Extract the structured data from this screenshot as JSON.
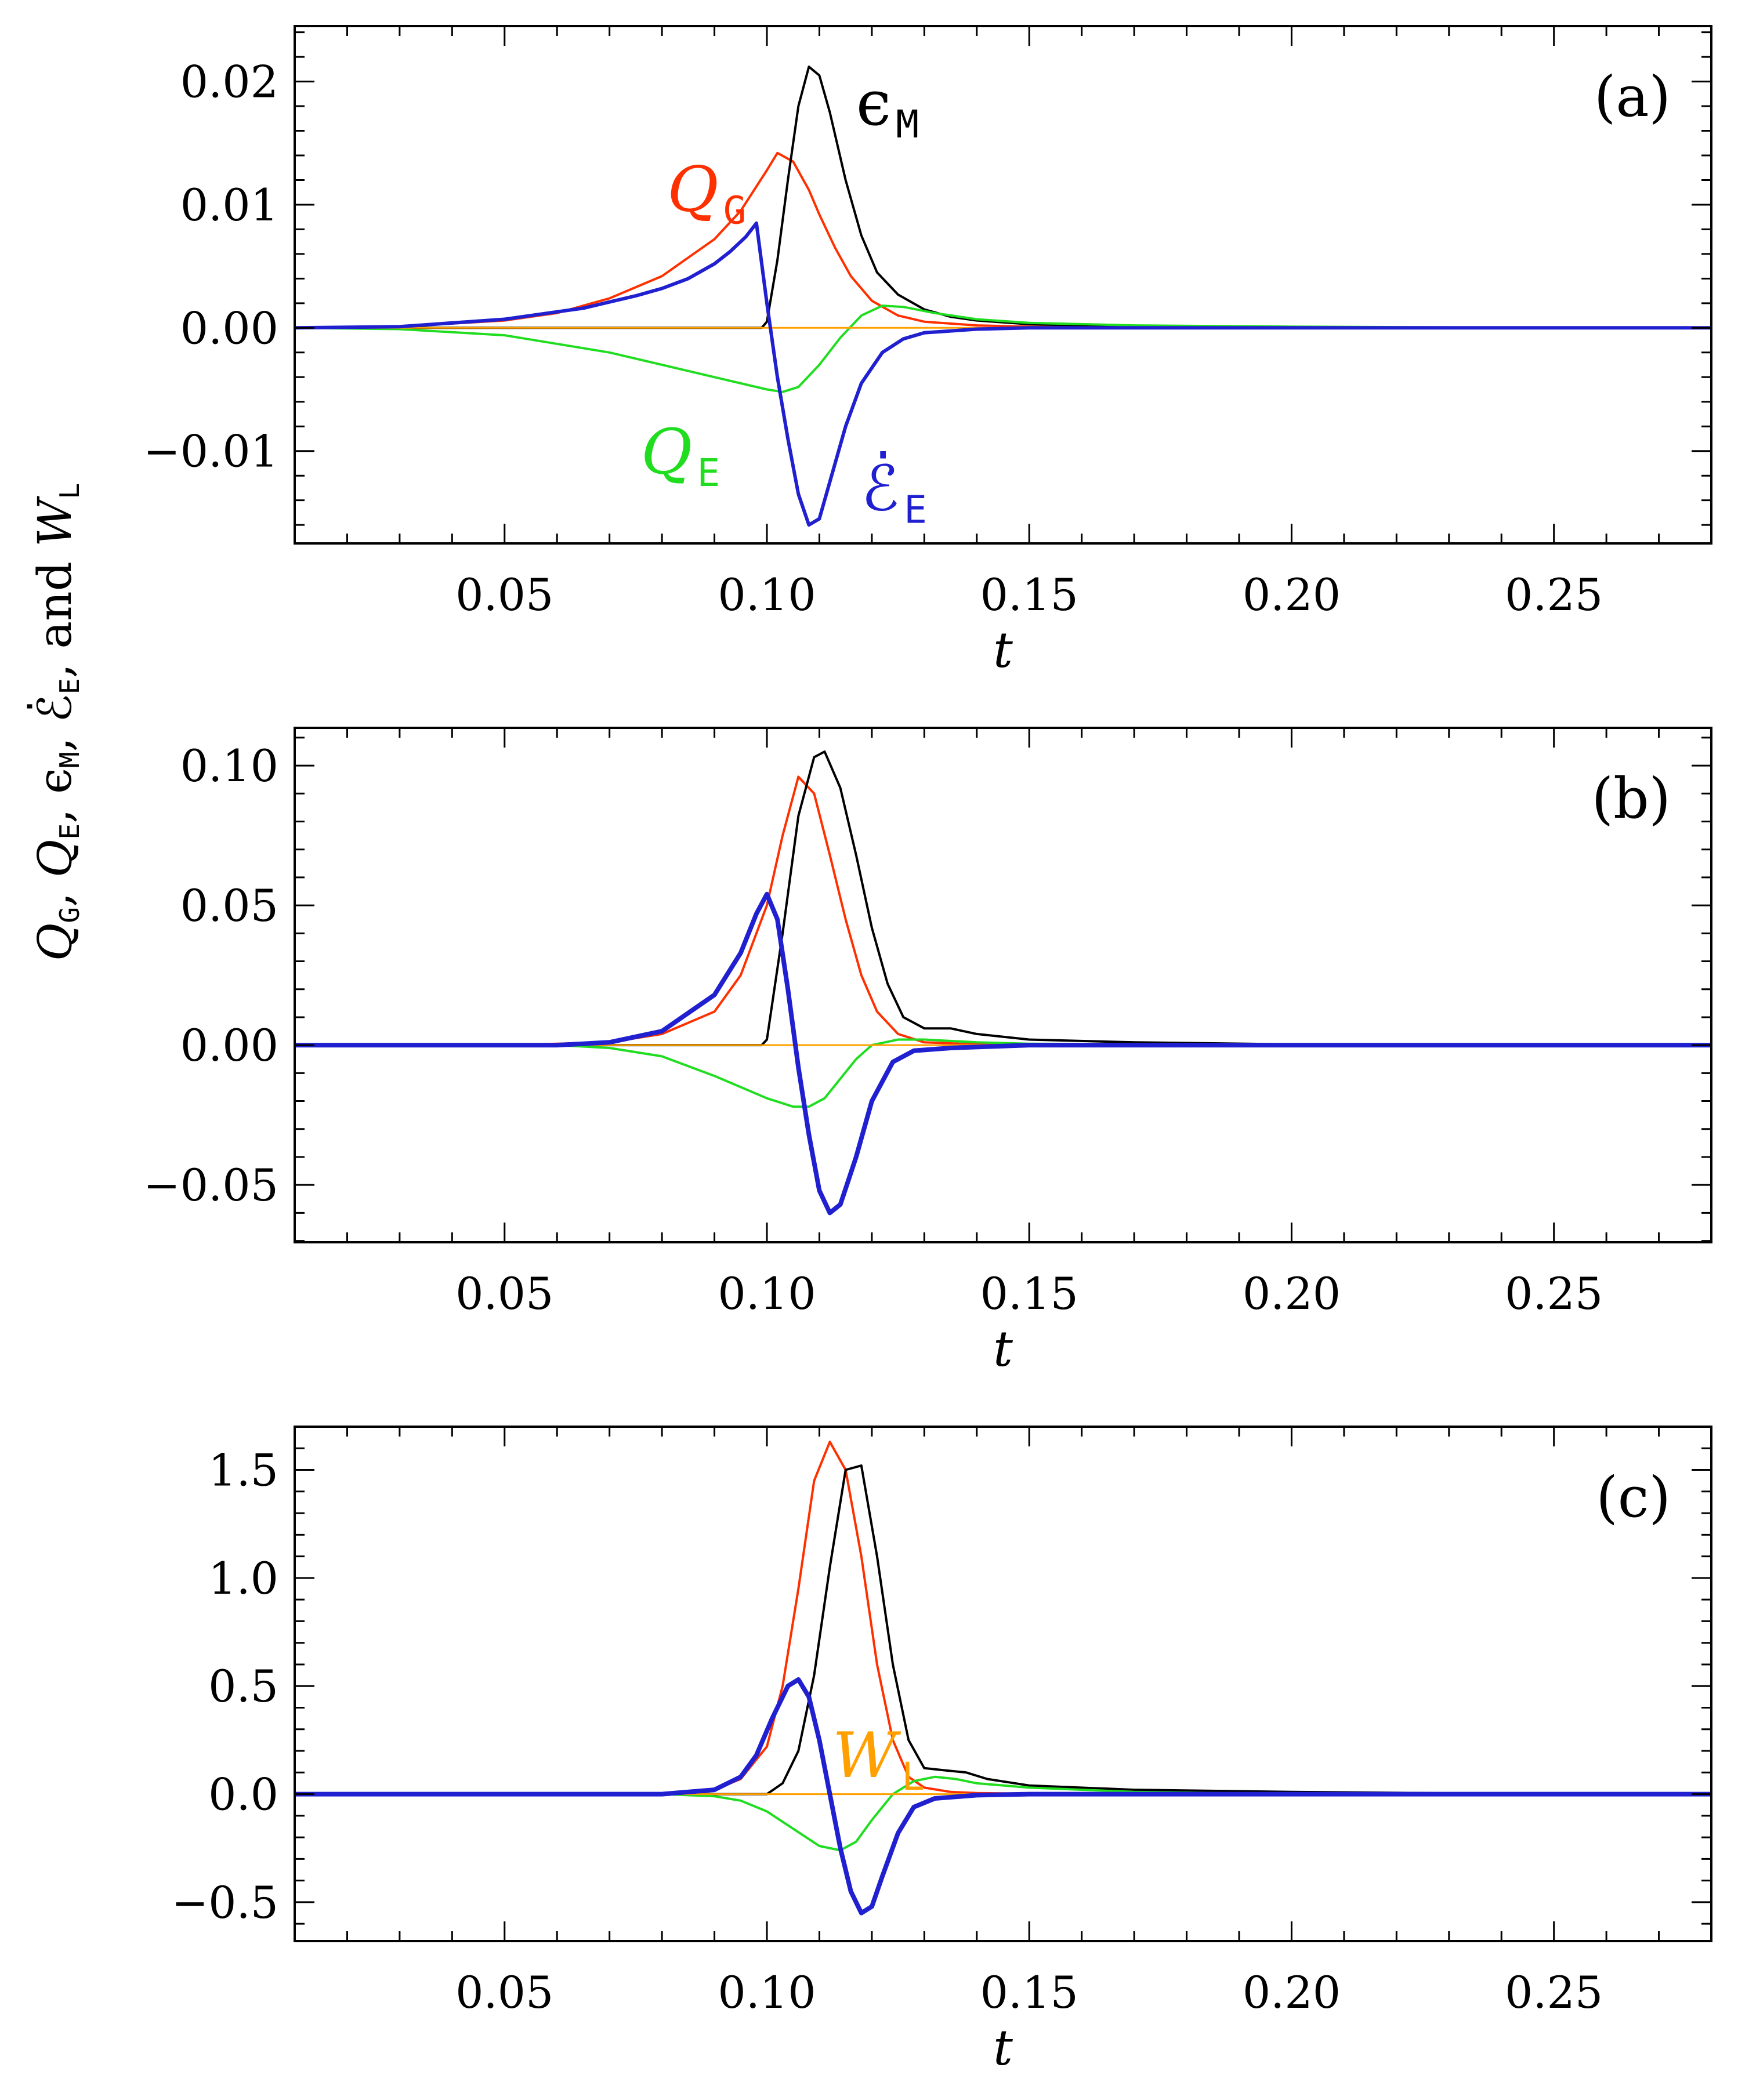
{
  "figure": {
    "ylabel_parts": [
      {
        "text": "Q",
        "style": "italic"
      },
      {
        "text": "G",
        "style": "sub"
      },
      {
        "text": ",  ",
        "style": "normal"
      },
      {
        "text": "Q",
        "style": "italic"
      },
      {
        "text": "E",
        "style": "sub"
      },
      {
        "text": ",  ϵ",
        "style": "normal"
      },
      {
        "text": "M",
        "style": "sub"
      },
      {
        "text": ",  ℰ̇",
        "style": "normal"
      },
      {
        "text": "E",
        "style": "sub"
      },
      {
        "text": ",  and  ",
        "style": "normal"
      },
      {
        "text": "W",
        "style": "italic"
      },
      {
        "text": "L",
        "style": "sub"
      }
    ]
  },
  "colors": {
    "Q_G": "#ff3000",
    "epsilon_M": "#000000",
    "Q_E": "#20dd20",
    "Edot_E": "#2020d0",
    "W_L": "#ffa000"
  },
  "chart_data": [
    {
      "type": "line",
      "panel": "(a)",
      "xlabel": "t",
      "xlim": [
        0.01,
        0.28
      ],
      "ylim": [
        -0.0175,
        0.0245
      ],
      "xticks": [
        0.05,
        0.1,
        0.15,
        0.2,
        0.25
      ],
      "xtick_labels": [
        "0.05",
        "0.10",
        "0.15",
        "0.20",
        "0.25"
      ],
      "yticks": [
        -0.01,
        0.0,
        0.01,
        0.02
      ],
      "ytick_labels": [
        "−0.01",
        "0.00",
        "0.01",
        "0.02"
      ],
      "series": [
        {
          "name": "Q_G",
          "color_key": "Q_G",
          "width": 4,
          "x": [
            0.01,
            0.03,
            0.05,
            0.06,
            0.07,
            0.08,
            0.09,
            0.095,
            0.1,
            0.102,
            0.105,
            0.108,
            0.11,
            0.113,
            0.116,
            0.12,
            0.125,
            0.13,
            0.14,
            0.15,
            0.17,
            0.2,
            0.25,
            0.28
          ],
          "y": [
            0.0,
            0.0001,
            0.0006,
            0.0012,
            0.0024,
            0.0042,
            0.0072,
            0.0095,
            0.0128,
            0.0142,
            0.0135,
            0.0112,
            0.0092,
            0.0065,
            0.0042,
            0.0022,
            0.001,
            0.0005,
            0.0002,
            0.0001,
            0.0,
            0.0,
            0.0,
            0.0
          ]
        },
        {
          "name": "epsilon_M",
          "color_key": "epsilon_M",
          "width": 4,
          "x": [
            0.01,
            0.099,
            0.1,
            0.102,
            0.104,
            0.106,
            0.108,
            0.11,
            0.112,
            0.115,
            0.118,
            0.121,
            0.125,
            0.13,
            0.135,
            0.14,
            0.15,
            0.17,
            0.2,
            0.25,
            0.28
          ],
          "y": [
            0.0,
            0.0,
            0.0005,
            0.0055,
            0.012,
            0.018,
            0.0212,
            0.0205,
            0.0175,
            0.012,
            0.0075,
            0.0045,
            0.0027,
            0.0015,
            0.0009,
            0.0006,
            0.0003,
            0.0001,
            0.0,
            0.0,
            0.0
          ]
        },
        {
          "name": "Q_E",
          "color_key": "Q_E",
          "width": 4,
          "x": [
            0.01,
            0.03,
            0.05,
            0.07,
            0.09,
            0.1,
            0.103,
            0.106,
            0.11,
            0.114,
            0.118,
            0.122,
            0.126,
            0.132,
            0.14,
            0.15,
            0.17,
            0.2,
            0.25,
            0.28
          ],
          "y": [
            0.0,
            -0.0001,
            -0.0006,
            -0.002,
            -0.004,
            -0.005,
            -0.0052,
            -0.0048,
            -0.003,
            -0.0008,
            0.001,
            0.0018,
            0.0017,
            0.0012,
            0.0007,
            0.0004,
            0.0002,
            0.0001,
            0.0,
            0.0
          ]
        },
        {
          "name": "W_L",
          "color_key": "W_L",
          "width": 3,
          "x": [
            0.01,
            0.28
          ],
          "y": [
            0.0,
            0.0
          ]
        },
        {
          "name": "Edot_E",
          "color_key": "Edot_E",
          "width": 6,
          "x": [
            0.01,
            0.03,
            0.05,
            0.06,
            0.065,
            0.07,
            0.075,
            0.08,
            0.085,
            0.09,
            0.093,
            0.096,
            0.098,
            0.1,
            0.102,
            0.104,
            0.106,
            0.108,
            0.11,
            0.112,
            0.115,
            0.118,
            0.122,
            0.126,
            0.13,
            0.14,
            0.15,
            0.17,
            0.2,
            0.28
          ],
          "y": [
            0.0,
            0.0001,
            0.0007,
            0.0013,
            0.0016,
            0.0021,
            0.0026,
            0.0032,
            0.004,
            0.0052,
            0.0062,
            0.0074,
            0.0085,
            0.002,
            -0.004,
            -0.009,
            -0.0135,
            -0.016,
            -0.0155,
            -0.0125,
            -0.008,
            -0.0045,
            -0.002,
            -0.0009,
            -0.0004,
            -0.0001,
            0.0,
            0.0,
            0.0,
            0.0
          ]
        }
      ],
      "annotations": [
        {
          "series": "epsilon_M",
          "main": "ϵ",
          "sub": "M",
          "t": 0.117,
          "y": 0.0165
        },
        {
          "series": "Q_G",
          "main": "Q",
          "sub": "G",
          "t": 0.081,
          "y": 0.0095
        },
        {
          "series": "Q_E",
          "main": "Q",
          "sub": "E",
          "t": 0.076,
          "y": -0.0118
        },
        {
          "series": "Edot_E",
          "main": "ℰ̇",
          "sub": "E",
          "t": 0.118,
          "y": -0.0148
        }
      ]
    },
    {
      "type": "line",
      "panel": "(b)",
      "xlabel": "t",
      "xlim": [
        0.01,
        0.28
      ],
      "ylim": [
        -0.0705,
        0.1135
      ],
      "xticks": [
        0.05,
        0.1,
        0.15,
        0.2,
        0.25
      ],
      "xtick_labels": [
        "0.05",
        "0.10",
        "0.15",
        "0.20",
        "0.25"
      ],
      "yticks": [
        -0.05,
        0.0,
        0.05,
        0.1
      ],
      "ytick_labels": [
        "−0.05",
        "0.00",
        "0.05",
        "0.10"
      ],
      "series": [
        {
          "name": "Q_G",
          "color_key": "Q_G",
          "width": 4,
          "x": [
            0.01,
            0.05,
            0.07,
            0.08,
            0.09,
            0.095,
            0.1,
            0.103,
            0.106,
            0.109,
            0.112,
            0.115,
            0.118,
            0.121,
            0.125,
            0.13,
            0.14,
            0.15,
            0.2,
            0.28
          ],
          "y": [
            0.0,
            0.0,
            0.001,
            0.004,
            0.012,
            0.025,
            0.05,
            0.075,
            0.096,
            0.09,
            0.068,
            0.045,
            0.025,
            0.012,
            0.004,
            0.001,
            0.0003,
            0.0001,
            0.0,
            0.0
          ]
        },
        {
          "name": "epsilon_M",
          "color_key": "epsilon_M",
          "width": 4,
          "x": [
            0.01,
            0.099,
            0.1,
            0.103,
            0.106,
            0.109,
            0.111,
            0.114,
            0.117,
            0.12,
            0.123,
            0.126,
            0.13,
            0.135,
            0.14,
            0.15,
            0.17,
            0.2,
            0.25,
            0.28
          ],
          "y": [
            0.0,
            0.0,
            0.002,
            0.04,
            0.082,
            0.103,
            0.105,
            0.092,
            0.068,
            0.042,
            0.022,
            0.01,
            0.006,
            0.006,
            0.004,
            0.002,
            0.001,
            0.0003,
            0.0,
            0.0
          ]
        },
        {
          "name": "Q_E",
          "color_key": "Q_E",
          "width": 4,
          "x": [
            0.01,
            0.06,
            0.07,
            0.08,
            0.09,
            0.1,
            0.105,
            0.108,
            0.111,
            0.114,
            0.117,
            0.12,
            0.125,
            0.13,
            0.14,
            0.15,
            0.2,
            0.28
          ],
          "y": [
            0.0,
            0.0,
            -0.001,
            -0.004,
            -0.011,
            -0.019,
            -0.022,
            -0.022,
            -0.019,
            -0.012,
            -0.005,
            0.0,
            0.002,
            0.002,
            0.001,
            0.0005,
            0.0,
            0.0
          ]
        },
        {
          "name": "W_L",
          "color_key": "W_L",
          "width": 3,
          "x": [
            0.01,
            0.28
          ],
          "y": [
            0.0,
            0.0
          ]
        },
        {
          "name": "Edot_E",
          "color_key": "Edot_E",
          "width": 8,
          "x": [
            0.01,
            0.06,
            0.07,
            0.08,
            0.09,
            0.095,
            0.098,
            0.1,
            0.102,
            0.104,
            0.106,
            0.108,
            0.11,
            0.112,
            0.114,
            0.117,
            0.12,
            0.124,
            0.128,
            0.135,
            0.15,
            0.2,
            0.28
          ],
          "y": [
            0.0,
            0.0,
            0.001,
            0.005,
            0.018,
            0.033,
            0.047,
            0.054,
            0.045,
            0.02,
            -0.008,
            -0.032,
            -0.052,
            -0.06,
            -0.057,
            -0.04,
            -0.02,
            -0.006,
            -0.002,
            -0.001,
            0.0,
            0.0,
            0.0
          ]
        }
      ],
      "annotations": []
    },
    {
      "type": "line",
      "panel": "(c)",
      "xlabel": "t",
      "xlim": [
        0.01,
        0.28
      ],
      "ylim": [
        -0.68,
        1.7
      ],
      "xticks": [
        0.05,
        0.1,
        0.15,
        0.2,
        0.25
      ],
      "xtick_labels": [
        "0.05",
        "0.10",
        "0.15",
        "0.20",
        "0.25"
      ],
      "yticks": [
        -0.5,
        0.0,
        0.5,
        1.0,
        1.5
      ],
      "ytick_labels": [
        "−0.5",
        "0.0",
        "0.5",
        "1.0",
        "1.5"
      ],
      "series": [
        {
          "name": "Q_G",
          "color_key": "Q_G",
          "width": 4,
          "x": [
            0.01,
            0.08,
            0.09,
            0.095,
            0.1,
            0.103,
            0.106,
            0.109,
            0.112,
            0.115,
            0.118,
            0.121,
            0.124,
            0.127,
            0.13,
            0.135,
            0.14,
            0.15,
            0.2,
            0.28
          ],
          "y": [
            0.0,
            0.0,
            0.02,
            0.07,
            0.22,
            0.5,
            0.95,
            1.45,
            1.63,
            1.5,
            1.1,
            0.6,
            0.25,
            0.08,
            0.03,
            0.01,
            0.005,
            0.002,
            0.0,
            0.0
          ]
        },
        {
          "name": "epsilon_M",
          "color_key": "epsilon_M",
          "width": 4,
          "x": [
            0.01,
            0.1,
            0.103,
            0.106,
            0.109,
            0.112,
            0.115,
            0.118,
            0.121,
            0.124,
            0.127,
            0.13,
            0.134,
            0.138,
            0.142,
            0.15,
            0.17,
            0.2,
            0.25,
            0.28
          ],
          "y": [
            0.0,
            0.0,
            0.05,
            0.2,
            0.55,
            1.05,
            1.5,
            1.52,
            1.1,
            0.6,
            0.25,
            0.12,
            0.11,
            0.1,
            0.07,
            0.04,
            0.02,
            0.01,
            0.0,
            0.0
          ]
        },
        {
          "name": "Q_E",
          "color_key": "Q_E",
          "width": 4,
          "x": [
            0.01,
            0.08,
            0.09,
            0.095,
            0.1,
            0.105,
            0.11,
            0.114,
            0.117,
            0.12,
            0.124,
            0.128,
            0.132,
            0.136,
            0.14,
            0.15,
            0.17,
            0.2,
            0.28
          ],
          "y": [
            0.0,
            0.0,
            -0.01,
            -0.03,
            -0.08,
            -0.16,
            -0.24,
            -0.26,
            -0.22,
            -0.12,
            0.0,
            0.06,
            0.08,
            0.07,
            0.05,
            0.03,
            0.01,
            0.0,
            0.0
          ]
        },
        {
          "name": "W_L",
          "color_key": "W_L",
          "width": 3,
          "x": [
            0.01,
            0.28
          ],
          "y": [
            0.0,
            0.0
          ]
        },
        {
          "name": "Edot_E",
          "color_key": "Edot_E",
          "width": 8,
          "x": [
            0.01,
            0.08,
            0.09,
            0.095,
            0.098,
            0.101,
            0.104,
            0.106,
            0.108,
            0.11,
            0.112,
            0.114,
            0.116,
            0.118,
            0.12,
            0.122,
            0.125,
            0.128,
            0.132,
            0.14,
            0.15,
            0.2,
            0.28
          ],
          "y": [
            0.0,
            0.0,
            0.02,
            0.08,
            0.18,
            0.35,
            0.5,
            0.53,
            0.45,
            0.25,
            0.0,
            -0.25,
            -0.45,
            -0.55,
            -0.52,
            -0.38,
            -0.18,
            -0.06,
            -0.02,
            -0.005,
            0.0,
            0.0,
            0.0
          ]
        }
      ],
      "annotations": [
        {
          "series": "W_L",
          "main": "W",
          "sub": "L",
          "t": 0.1125,
          "y": 0.08
        }
      ]
    }
  ]
}
